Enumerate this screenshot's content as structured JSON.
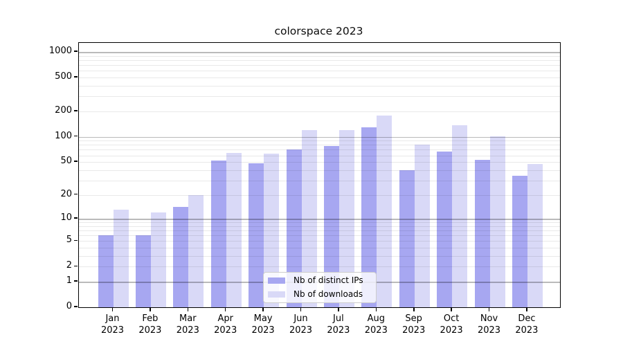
{
  "title": "colorspace 2023",
  "colors": {
    "ips": "#a7a7f1",
    "downloads": "#d9d9f7",
    "grid_major": "rgba(0,0,0,0.27)",
    "grid_minor": "rgba(0,0,0,0.085)",
    "spine": "#000000"
  },
  "legend": [
    {
      "label": "Nb of distinct IPs",
      "color_key": "ips"
    },
    {
      "label": "Nb of downloads",
      "color_key": "downloads"
    }
  ],
  "chart_data": {
    "type": "bar",
    "title": "colorspace 2023",
    "categories": [
      "Jan 2023",
      "Feb 2023",
      "Mar 2023",
      "Apr 2023",
      "May 2023",
      "Jun 2023",
      "Jul 2023",
      "Aug 2023",
      "Sep 2023",
      "Oct 2023",
      "Nov 2023",
      "Dec 2023"
    ],
    "series": [
      {
        "name": "Nb of distinct IPs",
        "color_key": "ips",
        "values": [
          6,
          6,
          14,
          52,
          48,
          70,
          78,
          130,
          40,
          67,
          53,
          34
        ]
      },
      {
        "name": "Nb of downloads",
        "color_key": "downloads",
        "values": [
          13,
          12,
          20,
          64,
          63,
          120,
          120,
          178,
          80,
          137,
          102,
          47
        ]
      }
    ],
    "xlabel": "",
    "ylabel": "",
    "yscale": "log1p",
    "yticks": [
      0,
      1,
      2,
      5,
      10,
      20,
      50,
      100,
      200,
      500,
      1000
    ],
    "ytick_major_gridlines": [
      1,
      10,
      100,
      1000
    ],
    "ylim": [
      0,
      1280
    ],
    "grid": "horizontal major+minor, drawn over bars",
    "legend_position": "inside lower-center"
  }
}
